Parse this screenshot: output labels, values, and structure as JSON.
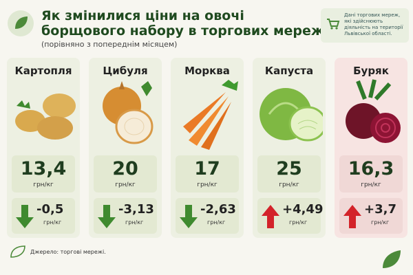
{
  "header": {
    "title": [
      "Як змінилися ціни на овочі",
      "борщового набору в торгових мережах"
    ],
    "subtitle": "(порівняно з попереднім місяцем)",
    "note": "Дані торгових мереж, які здійснюють діяльність на території Львівської області."
  },
  "cards": [
    {
      "name": "Картопля",
      "price": "13,4",
      "unit": "грн/кг",
      "change": "-0,5",
      "change_unit": "грн/кг"
    },
    {
      "name": "Цибуля",
      "price": "20",
      "unit": "грн/кг",
      "change": "-3,13",
      "change_unit": "грн/кг"
    },
    {
      "name": "Морква",
      "price": "17",
      "unit": "грн/кг",
      "change": "-2,63",
      "change_unit": "грн/кг"
    },
    {
      "name": "Капуста",
      "price": "25",
      "unit": "грн/кг",
      "change": "+4,49",
      "change_unit": "грн/кг"
    },
    {
      "name": "Буряк",
      "price": "16,3",
      "unit": "грн/кг",
      "change": "+3,7",
      "change_unit": "грн/кг"
    }
  ],
  "footer": {
    "source": "Джерело: торгові мережі."
  }
}
